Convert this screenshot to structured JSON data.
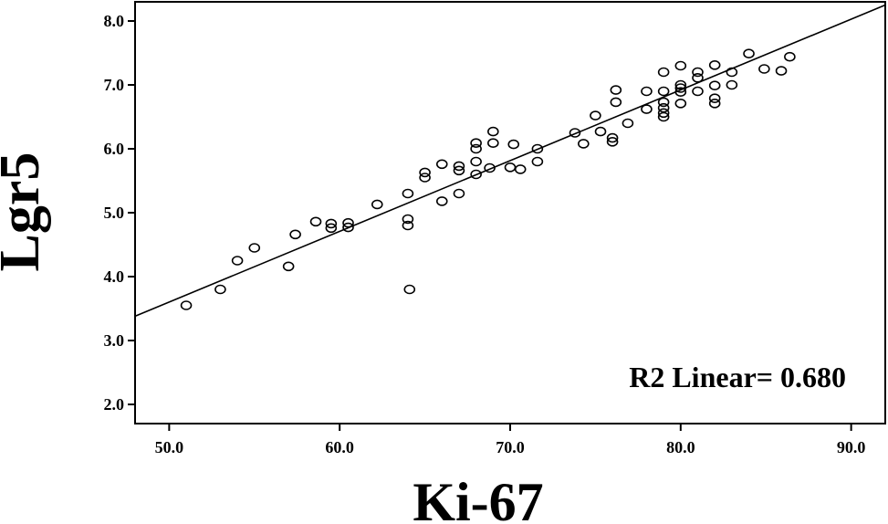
{
  "chart_data": {
    "type": "scatter",
    "xlabel": "Ki-67",
    "ylabel": "Lgr5",
    "xlim": [
      48.0,
      92.0
    ],
    "ylim": [
      1.7,
      8.3
    ],
    "xticks": [
      "50.0",
      "60.0",
      "70.0",
      "80.0",
      "90.0"
    ],
    "yticks": [
      "2.0",
      "3.0",
      "4.0",
      "5.0",
      "6.0",
      "7.0",
      "8.0"
    ],
    "xtick_values": [
      50,
      60,
      70,
      80,
      90
    ],
    "ytick_values": [
      2,
      3,
      4,
      5,
      6,
      7,
      8
    ],
    "annotation": "R2 Linear= 0.680",
    "fit_line": {
      "x": [
        48.0,
        92.0
      ],
      "y": [
        3.38,
        8.25
      ]
    },
    "points": {
      "x": [
        51.0,
        53.0,
        54.0,
        55.0,
        57.0,
        57.4,
        58.6,
        59.5,
        59.5,
        60.5,
        60.5,
        62.2,
        64.0,
        64.0,
        64.0,
        64.1,
        65.0,
        65.0,
        66.0,
        66.0,
        67.0,
        67.0,
        67.0,
        68.0,
        68.0,
        68.0,
        68.0,
        68.8,
        69.0,
        69.0,
        70.0,
        70.2,
        70.6,
        71.6,
        71.6,
        73.8,
        74.3,
        75.0,
        75.3,
        76.0,
        76.0,
        76.2,
        76.2,
        76.9,
        78.0,
        78.0,
        79.0,
        79.0,
        79.0,
        79.0,
        79.0,
        79.0,
        80.0,
        80.0,
        80.0,
        80.0,
        80.0,
        81.0,
        81.0,
        81.0,
        82.0,
        82.0,
        82.0,
        82.0,
        83.0,
        83.0,
        84.0,
        84.9,
        85.9,
        86.4
      ],
      "y": [
        3.55,
        3.8,
        4.25,
        4.45,
        4.16,
        4.66,
        4.86,
        4.76,
        4.83,
        4.77,
        4.84,
        5.13,
        4.8,
        4.9,
        5.3,
        3.8,
        5.55,
        5.63,
        5.18,
        5.76,
        5.3,
        5.66,
        5.73,
        5.6,
        5.8,
        6.0,
        6.09,
        5.7,
        6.09,
        6.27,
        5.71,
        6.07,
        5.68,
        5.8,
        6.0,
        6.25,
        6.08,
        6.52,
        6.27,
        6.11,
        6.17,
        6.73,
        6.92,
        6.4,
        6.62,
        6.9,
        6.5,
        6.56,
        6.64,
        6.73,
        6.9,
        7.2,
        6.71,
        6.89,
        6.95,
        7.0,
        7.3,
        6.9,
        7.11,
        7.2,
        6.71,
        6.79,
        6.99,
        7.31,
        7.0,
        7.2,
        7.49,
        7.25,
        7.22,
        7.44
      ]
    }
  }
}
